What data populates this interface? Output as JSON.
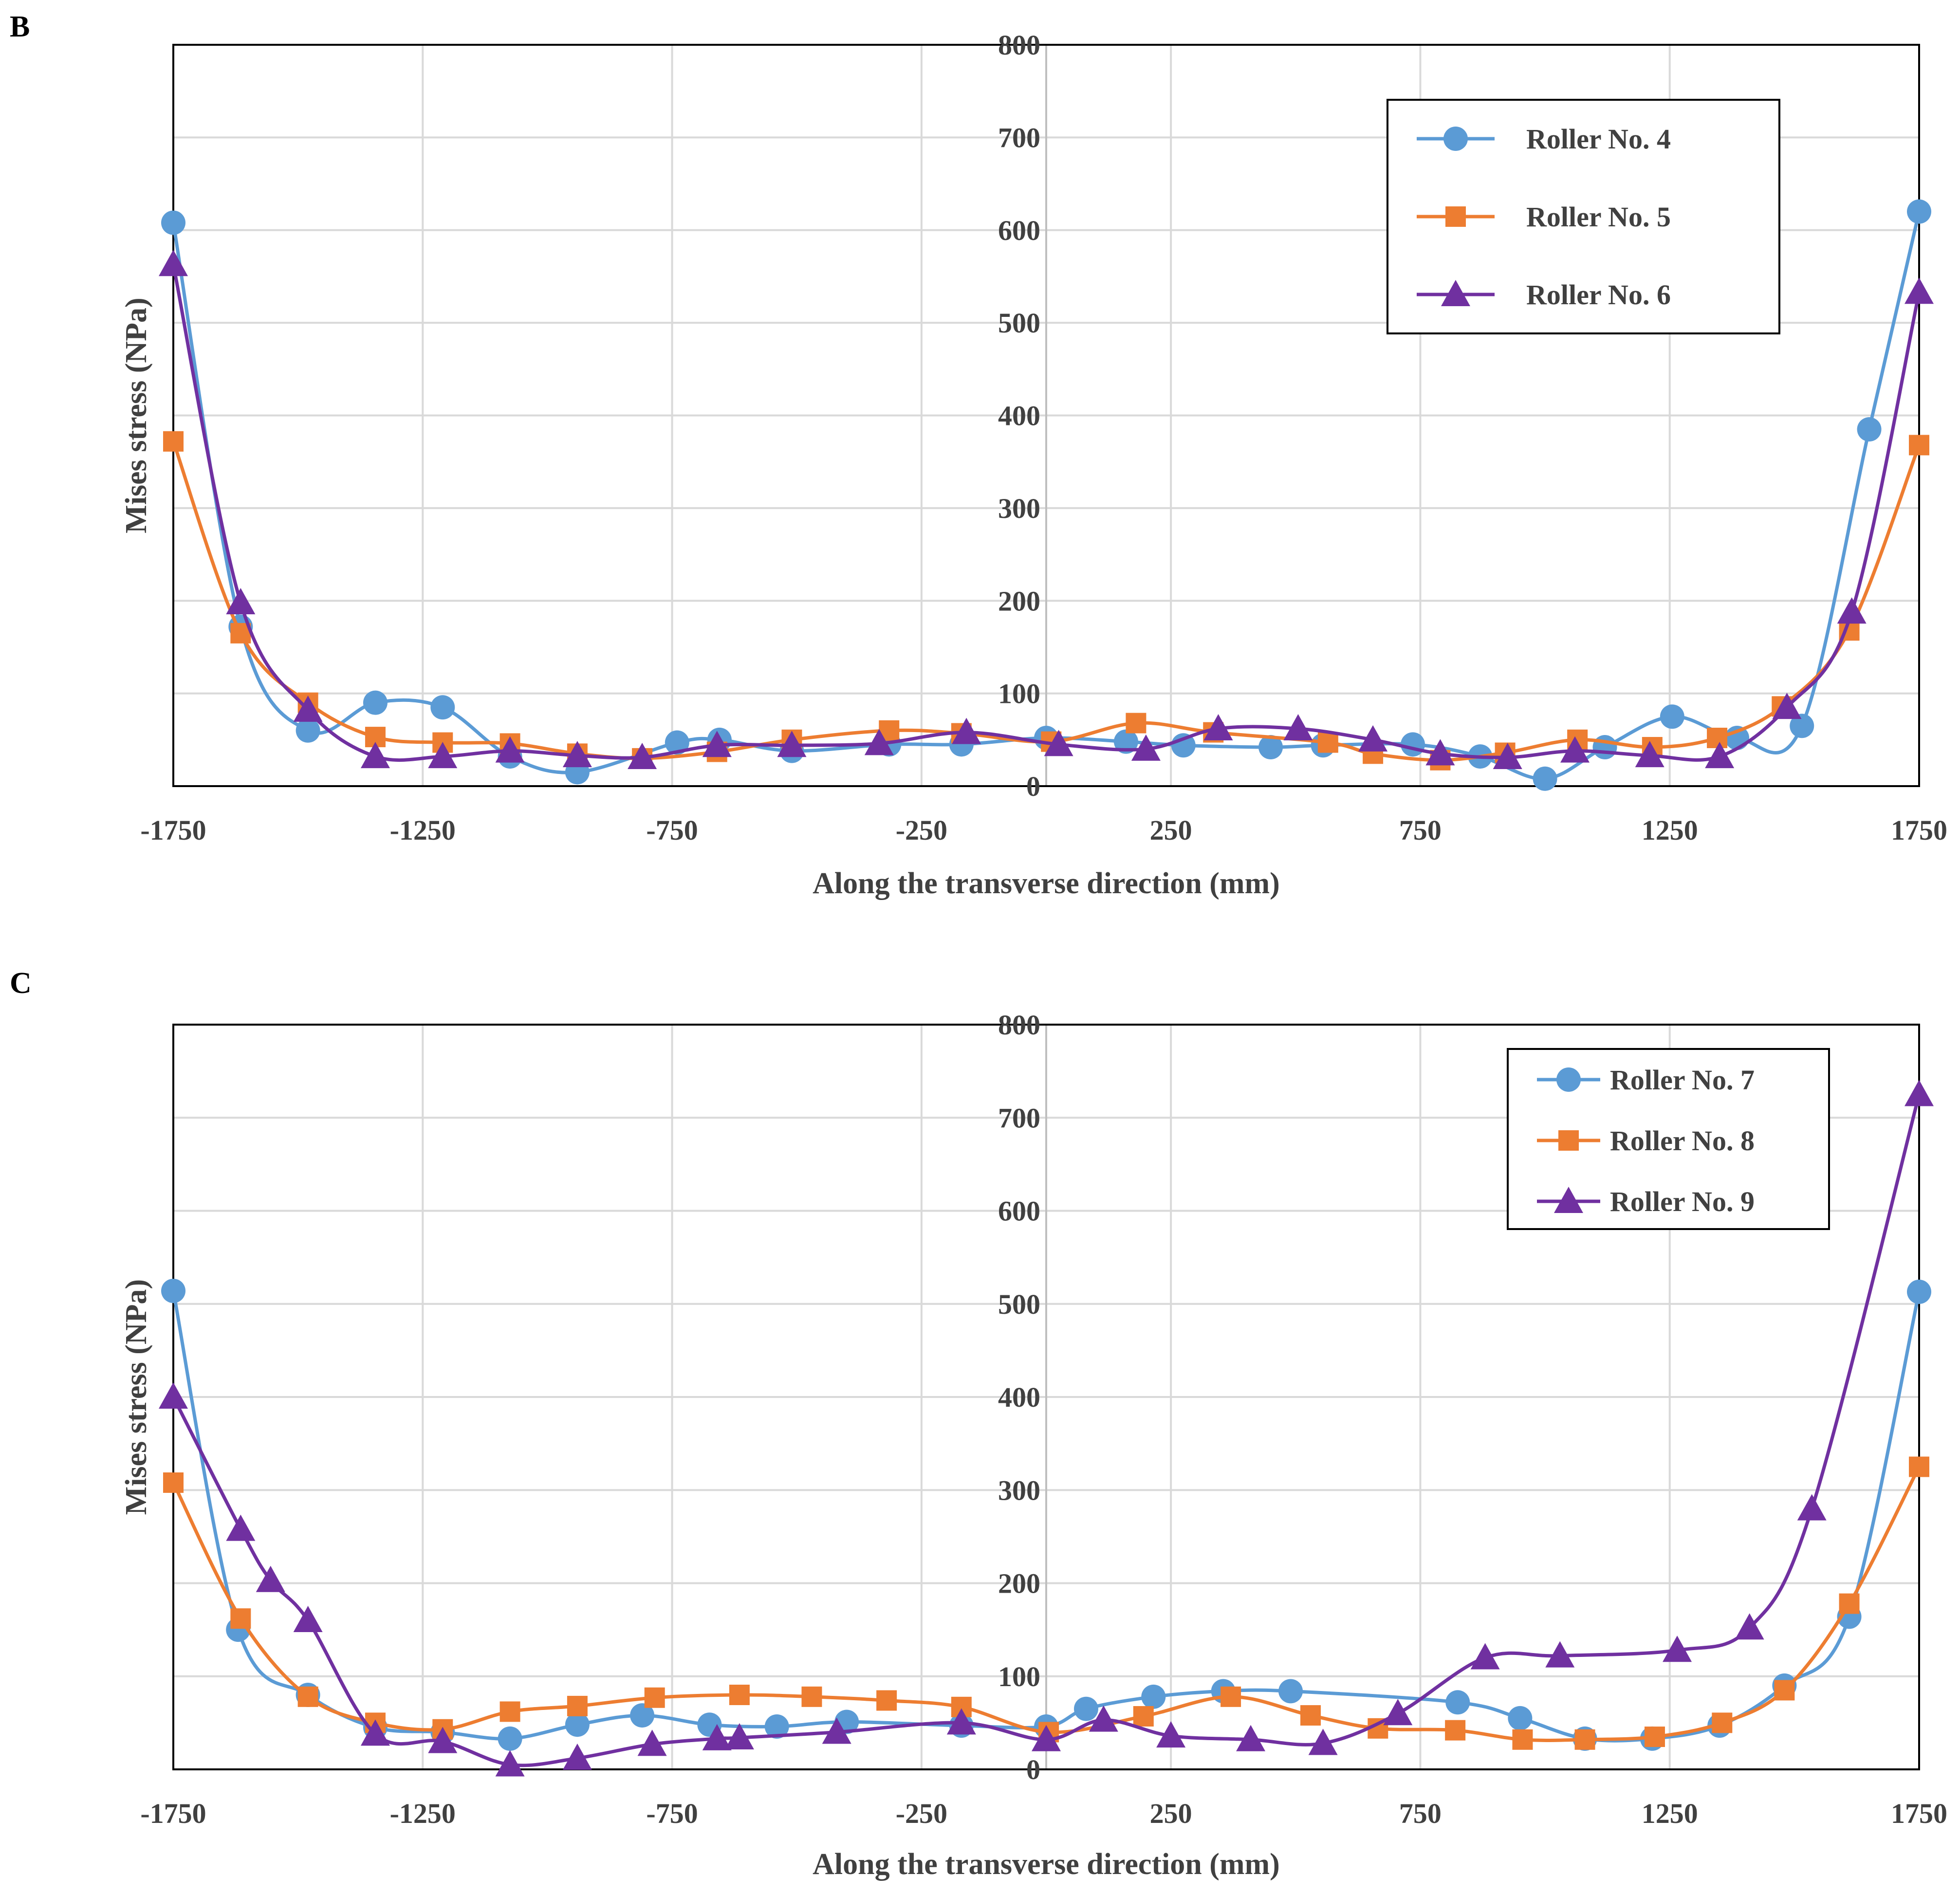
{
  "chart_data": [
    {
      "panel": "B",
      "type": "line",
      "xlabel": "Along the transverse direction (mm)",
      "ylabel": "Mises stress (NPa)",
      "xlim": [
        -1750,
        1750
      ],
      "ylim": [
        0,
        800
      ],
      "xticks": [
        -1750,
        -1250,
        -750,
        -250,
        250,
        750,
        1250,
        1750
      ],
      "yticks": [
        0,
        100,
        200,
        300,
        400,
        500,
        600,
        700,
        800
      ],
      "grid": true,
      "legend_position": "top-right",
      "series": [
        {
          "name": "Roller No. 4",
          "color": "#5B9BD5",
          "marker": "circle",
          "x": [
            -1750,
            -1615,
            -1480,
            -1345,
            -1210,
            -1075,
            -940,
            -740,
            -655,
            -510,
            -315,
            -170,
            0,
            160,
            275,
            450,
            555,
            735,
            870,
            1000,
            1120,
            1255,
            1385,
            1515,
            1650,
            1750
          ],
          "y": [
            608,
            172,
            60,
            90,
            85,
            32,
            15,
            47,
            50,
            38,
            45,
            45,
            52,
            48,
            44,
            42,
            44,
            45,
            32,
            8,
            42,
            75,
            52,
            65,
            385,
            620
          ]
        },
        {
          "name": "Roller No. 5",
          "color": "#ED7D31",
          "marker": "square",
          "x": [
            -1750,
            -1615,
            -1480,
            -1345,
            -1210,
            -1075,
            -940,
            -810,
            -660,
            -510,
            -315,
            -170,
            10,
            180,
            335,
            565,
            655,
            790,
            920,
            1065,
            1215,
            1345,
            1475,
            1610,
            1750
          ],
          "y": [
            372,
            165,
            90,
            53,
            47,
            46,
            35,
            30,
            37,
            50,
            60,
            57,
            48,
            68,
            58,
            47,
            35,
            28,
            36,
            50,
            42,
            52,
            86,
            168,
            368
          ]
        },
        {
          "name": "Roller No. 6",
          "color": "#7030A0",
          "marker": "triangle",
          "x": [
            -1750,
            -1615,
            -1480,
            -1345,
            -1210,
            -1075,
            -940,
            -810,
            -660,
            -510,
            -335,
            -160,
            25,
            200,
            345,
            505,
            655,
            790,
            925,
            1060,
            1210,
            1350,
            1485,
            1615,
            1750
          ],
          "y": [
            563,
            198,
            82,
            32,
            32,
            38,
            33,
            31,
            44,
            44,
            46,
            58,
            45,
            40,
            62,
            62,
            50,
            35,
            31,
            38,
            33,
            32,
            85,
            188,
            533
          ]
        }
      ]
    },
    {
      "panel": "C",
      "type": "line",
      "xlabel": "Along the transverse direction (mm)",
      "ylabel": "Mises stress (NPa)",
      "xlim": [
        -1750,
        1750
      ],
      "ylim": [
        0,
        800
      ],
      "xticks": [
        -1750,
        -1250,
        -750,
        -250,
        250,
        750,
        1250,
        1750
      ],
      "yticks": [
        0,
        100,
        200,
        300,
        400,
        500,
        600,
        700,
        800
      ],
      "grid": true,
      "legend_position": "top-right",
      "series": [
        {
          "name": "Roller No. 7",
          "color": "#5B9BD5",
          "marker": "circle",
          "x": [
            -1750,
            -1620,
            -1480,
            -1345,
            -1210,
            -1075,
            -940,
            -810,
            -675,
            -540,
            -400,
            -170,
            0,
            80,
            215,
            355,
            490,
            825,
            950,
            1080,
            1215,
            1350,
            1480,
            1610,
            1750
          ],
          "y": [
            514,
            150,
            80,
            45,
            40,
            33,
            48,
            58,
            48,
            46,
            51,
            47,
            46,
            65,
            78,
            84,
            84,
            72,
            55,
            33,
            33,
            47,
            90,
            164,
            513
          ]
        },
        {
          "name": "Roller No. 8",
          "color": "#ED7D31",
          "marker": "square",
          "x": [
            -1750,
            -1615,
            -1480,
            -1345,
            -1210,
            -1075,
            -940,
            -785,
            -615,
            -470,
            -320,
            -170,
            5,
            195,
            370,
            530,
            665,
            820,
            955,
            1080,
            1220,
            1355,
            1480,
            1610,
            1750
          ],
          "y": [
            308,
            162,
            78,
            50,
            43,
            62,
            68,
            77,
            80,
            78,
            74,
            67,
            40,
            57,
            78,
            58,
            44,
            42,
            32,
            32,
            35,
            50,
            85,
            178,
            325
          ]
        },
        {
          "name": "Roller No. 9",
          "color": "#7030A0",
          "marker": "triangle",
          "x": [
            -1750,
            -1615,
            -1555,
            -1480,
            -1345,
            -1210,
            -1075,
            -940,
            -790,
            -660,
            -615,
            -420,
            -170,
            0,
            115,
            250,
            410,
            555,
            705,
            880,
            1030,
            1265,
            1410,
            1535,
            1750
          ],
          "y": [
            400,
            258,
            203,
            160,
            38,
            30,
            5,
            12,
            27,
            33,
            34,
            40,
            50,
            32,
            53,
            36,
            32,
            28,
            60,
            120,
            122,
            128,
            152,
            280,
            725
          ]
        }
      ]
    }
  ]
}
